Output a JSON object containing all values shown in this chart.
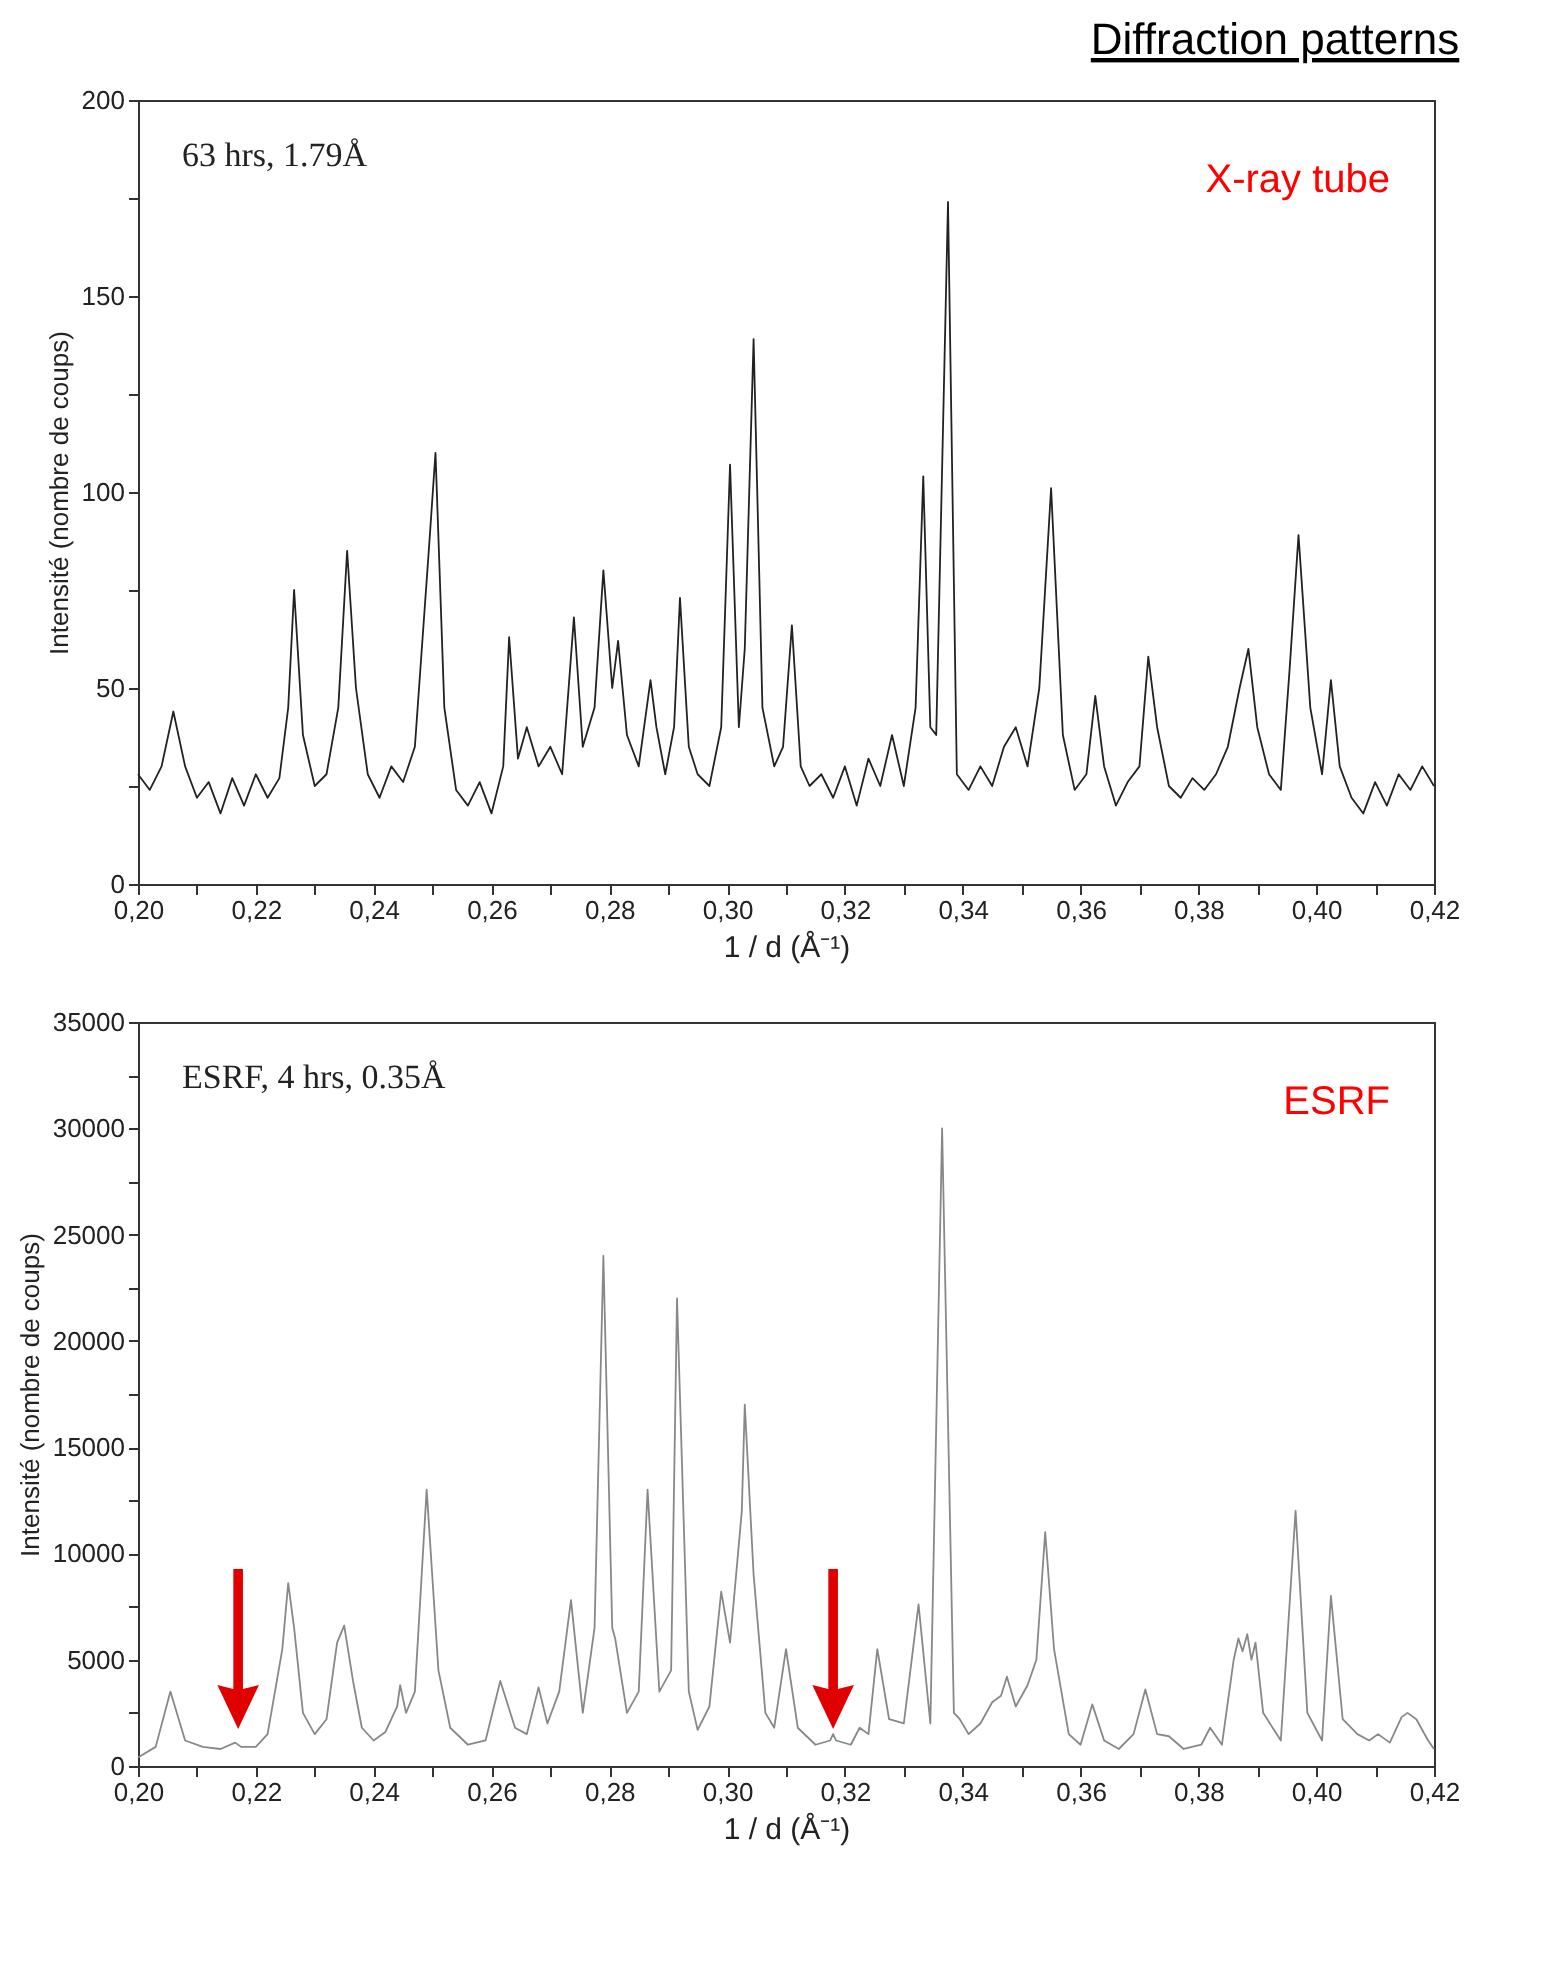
{
  "chart_data": [
    {
      "type": "line",
      "title": "Diffraction patterns",
      "xlabel": "1 / d (Å⁻¹)",
      "ylabel": "Intensité (nombre de coups)",
      "annotations": [
        "63 hrs, 1.79Å",
        "X-ray tube"
      ],
      "xlim": [
        0.2,
        0.42
      ],
      "ylim": [
        0,
        200
      ],
      "xticks": [
        {
          "value": 0.2,
          "label": "0,20"
        },
        {
          "value": 0.21,
          "label": null
        },
        {
          "value": 0.22,
          "label": "0,22"
        },
        {
          "value": 0.23,
          "label": null
        },
        {
          "value": 0.24,
          "label": "0,24"
        },
        {
          "value": 0.25,
          "label": null
        },
        {
          "value": 0.26,
          "label": "0,26"
        },
        {
          "value": 0.27,
          "label": null
        },
        {
          "value": 0.28,
          "label": "0,28"
        },
        {
          "value": 0.29,
          "label": null
        },
        {
          "value": 0.3,
          "label": "0,30"
        },
        {
          "value": 0.31,
          "label": null
        },
        {
          "value": 0.32,
          "label": "0,32"
        },
        {
          "value": 0.33,
          "label": null
        },
        {
          "value": 0.34,
          "label": "0,34"
        },
        {
          "value": 0.35,
          "label": null
        },
        {
          "value": 0.36,
          "label": "0,36"
        },
        {
          "value": 0.37,
          "label": null
        },
        {
          "value": 0.38,
          "label": "0,38"
        },
        {
          "value": 0.39,
          "label": null
        },
        {
          "value": 0.4,
          "label": "0,40"
        },
        {
          "value": 0.41,
          "label": null
        },
        {
          "value": 0.42,
          "label": "0,42"
        }
      ],
      "yticks": [
        0,
        {
          "value": 25,
          "label": null
        },
        50,
        {
          "value": 75,
          "label": null
        },
        100,
        {
          "value": 125,
          "label": null
        },
        150,
        {
          "value": 175,
          "label": null
        },
        200
      ],
      "grid": false,
      "marker": "none",
      "line_style": "solid",
      "series": [
        {
          "color": "#222222",
          "x": [
            0.2,
            0.202,
            0.204,
            0.206,
            0.208,
            0.21,
            0.212,
            0.214,
            0.216,
            0.218,
            0.22,
            0.222,
            0.224,
            0.2255,
            0.2265,
            0.228,
            0.23,
            0.232,
            0.234,
            0.2355,
            0.237,
            0.239,
            0.241,
            0.243,
            0.245,
            0.247,
            0.2495,
            0.2505,
            0.252,
            0.254,
            0.256,
            0.258,
            0.26,
            0.262,
            0.263,
            0.2645,
            0.266,
            0.268,
            0.27,
            0.272,
            0.274,
            0.2755,
            0.2775,
            0.279,
            0.2805,
            0.2815,
            0.283,
            0.285,
            0.287,
            0.288,
            0.2895,
            0.291,
            0.292,
            0.2935,
            0.295,
            0.297,
            0.299,
            0.3005,
            0.302,
            0.303,
            0.3045,
            0.306,
            0.308,
            0.3095,
            0.311,
            0.3125,
            0.314,
            0.316,
            0.318,
            0.32,
            0.322,
            0.324,
            0.326,
            0.328,
            0.33,
            0.332,
            0.3333,
            0.3345,
            0.3355,
            0.3375,
            0.339,
            0.341,
            0.343,
            0.345,
            0.347,
            0.349,
            0.351,
            0.353,
            0.355,
            0.357,
            0.359,
            0.361,
            0.3625,
            0.364,
            0.366,
            0.368,
            0.37,
            0.3715,
            0.373,
            0.375,
            0.377,
            0.379,
            0.381,
            0.383,
            0.385,
            0.387,
            0.3885,
            0.39,
            0.392,
            0.394,
            0.3955,
            0.397,
            0.399,
            0.401,
            0.4025,
            0.404,
            0.406,
            0.408,
            0.41,
            0.412,
            0.414,
            0.416,
            0.418,
            0.42
          ],
          "values": [
            28,
            24,
            30,
            44,
            30,
            22,
            26,
            18,
            27,
            20,
            28,
            22,
            27,
            45,
            75,
            38,
            25,
            28,
            45,
            85,
            50,
            28,
            22,
            30,
            26,
            35,
            88,
            110,
            45,
            24,
            20,
            26,
            18,
            30,
            63,
            32,
            40,
            30,
            35,
            28,
            68,
            35,
            45,
            80,
            50,
            62,
            38,
            30,
            52,
            40,
            28,
            40,
            73,
            35,
            28,
            25,
            40,
            107,
            40,
            60,
            139,
            45,
            30,
            35,
            66,
            30,
            25,
            28,
            22,
            30,
            20,
            32,
            25,
            38,
            25,
            45,
            104,
            40,
            38,
            174,
            28,
            24,
            30,
            25,
            35,
            40,
            30,
            50,
            101,
            38,
            24,
            28,
            48,
            30,
            20,
            26,
            30,
            58,
            40,
            25,
            22,
            27,
            24,
            28,
            35,
            50,
            60,
            40,
            28,
            24,
            55,
            89,
            45,
            28,
            52,
            30,
            22,
            18,
            26,
            20,
            28,
            24,
            30,
            25
          ]
        }
      ]
    },
    {
      "type": "line",
      "xlabel": "1 / d (Å⁻¹)",
      "ylabel": "Intensité (nombre de coups)",
      "annotations": [
        "ESRF, 4 hrs, 0.35Å",
        "ESRF"
      ],
      "xlim": [
        0.2,
        0.42
      ],
      "ylim": [
        0,
        35000
      ],
      "xticks": [
        {
          "value": 0.2,
          "label": "0,20"
        },
        {
          "value": 0.21,
          "label": null
        },
        {
          "value": 0.22,
          "label": "0,22"
        },
        {
          "value": 0.23,
          "label": null
        },
        {
          "value": 0.24,
          "label": "0,24"
        },
        {
          "value": 0.25,
          "label": null
        },
        {
          "value": 0.26,
          "label": "0,26"
        },
        {
          "value": 0.27,
          "label": null
        },
        {
          "value": 0.28,
          "label": "0,28"
        },
        {
          "value": 0.29,
          "label": null
        },
        {
          "value": 0.3,
          "label": "0,30"
        },
        {
          "value": 0.31,
          "label": null
        },
        {
          "value": 0.32,
          "label": "0,32"
        },
        {
          "value": 0.33,
          "label": null
        },
        {
          "value": 0.34,
          "label": "0,34"
        },
        {
          "value": 0.35,
          "label": null
        },
        {
          "value": 0.36,
          "label": "0,36"
        },
        {
          "value": 0.37,
          "label": null
        },
        {
          "value": 0.38,
          "label": "0,38"
        },
        {
          "value": 0.39,
          "label": null
        },
        {
          "value": 0.4,
          "label": "0,40"
        },
        {
          "value": 0.41,
          "label": null
        },
        {
          "value": 0.42,
          "label": "0,42"
        }
      ],
      "yticks": [
        0,
        {
          "value": 2500,
          "label": null
        },
        5000,
        {
          "value": 7500,
          "label": null
        },
        10000,
        {
          "value": 12500,
          "label": null
        },
        15000,
        {
          "value": 17500,
          "label": null
        },
        20000,
        {
          "value": 22500,
          "label": null
        },
        25000,
        {
          "value": 27500,
          "label": null
        },
        30000,
        {
          "value": 32500,
          "label": null
        },
        35000
      ],
      "grid": false,
      "marker": "none",
      "line_style": "solid",
      "series": [
        {
          "color": "#888888",
          "x": [
            0.2,
            0.203,
            0.2055,
            0.208,
            0.211,
            0.214,
            0.2165,
            0.2175,
            0.22,
            0.222,
            0.2245,
            0.2255,
            0.2265,
            0.228,
            0.23,
            0.232,
            0.2338,
            0.235,
            0.2365,
            0.238,
            0.24,
            0.242,
            0.244,
            0.2445,
            0.2455,
            0.247,
            0.249,
            0.251,
            0.253,
            0.256,
            0.259,
            0.2615,
            0.264,
            0.266,
            0.268,
            0.2695,
            0.2715,
            0.2735,
            0.2755,
            0.2775,
            0.279,
            0.2805,
            0.281,
            0.283,
            0.285,
            0.2865,
            0.2885,
            0.2905,
            0.2915,
            0.2935,
            0.295,
            0.297,
            0.299,
            0.3005,
            0.3025,
            0.303,
            0.3045,
            0.3065,
            0.308,
            0.31,
            0.312,
            0.315,
            0.3175,
            0.318,
            0.3185,
            0.321,
            0.3225,
            0.324,
            0.3255,
            0.3275,
            0.33,
            0.3325,
            0.3345,
            0.3365,
            0.3385,
            0.3395,
            0.341,
            0.343,
            0.345,
            0.3465,
            0.3475,
            0.349,
            0.351,
            0.3525,
            0.354,
            0.3555,
            0.358,
            0.36,
            0.362,
            0.364,
            0.3665,
            0.369,
            0.371,
            0.373,
            0.375,
            0.3775,
            0.3805,
            0.382,
            0.384,
            0.386,
            0.3868,
            0.3875,
            0.3883,
            0.389,
            0.3897,
            0.391,
            0.394,
            0.3965,
            0.3985,
            0.401,
            0.4025,
            0.4045,
            0.407,
            0.409,
            0.4105,
            0.4125,
            0.4145,
            0.4155,
            0.417,
            0.419,
            0.42
          ],
          "values": [
            400,
            900,
            3500,
            1200,
            900,
            800,
            1100,
            900,
            900,
            1500,
            5500,
            8600,
            6500,
            2500,
            1500,
            2200,
            5800,
            6600,
            4000,
            1800,
            1200,
            1600,
            2800,
            3800,
            2500,
            3500,
            13000,
            4500,
            1800,
            1000,
            1200,
            4000,
            1800,
            1500,
            3700,
            2000,
            3500,
            7800,
            2500,
            6500,
            24000,
            6500,
            6000,
            2500,
            3500,
            13000,
            3500,
            4500,
            22000,
            3500,
            1700,
            2800,
            8200,
            5800,
            12000,
            17000,
            9000,
            2500,
            1800,
            5500,
            1800,
            1000,
            1200,
            1500,
            1200,
            1000,
            1800,
            1500,
            5500,
            2200,
            2000,
            7600,
            2000,
            30000,
            2500,
            2200,
            1500,
            2000,
            3000,
            3300,
            4200,
            2800,
            3800,
            5000,
            11000,
            5500,
            1500,
            1000,
            2900,
            1200,
            800,
            1500,
            3600,
            1500,
            1400,
            800,
            1000,
            1800,
            1000,
            5000,
            6000,
            5400,
            6200,
            5000,
            5800,
            2500,
            1200,
            12000,
            2500,
            1200,
            8000,
            2200,
            1500,
            1200,
            1500,
            1100,
            2300,
            2500,
            2200,
            1200,
            800
          ]
        }
      ]
    }
  ]
}
